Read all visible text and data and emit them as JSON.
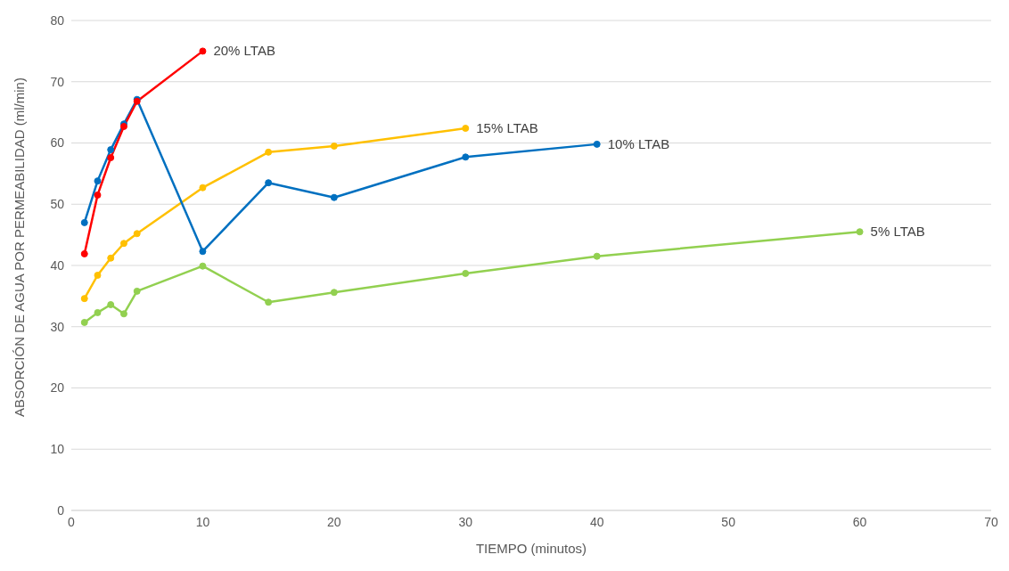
{
  "chart_data": {
    "type": "line",
    "xlabel": "TIEMPO (minutos)",
    "ylabel": "ABSORCIÓN DE AGUA POR PERMEABILIDAD (ml/min)",
    "xlim": [
      0,
      70
    ],
    "xticks": [
      0,
      10,
      20,
      30,
      40,
      50,
      60,
      70
    ],
    "ylim": [
      0,
      80
    ],
    "yticks": [
      0,
      10,
      20,
      30,
      40,
      50,
      60,
      70,
      80
    ],
    "grid": "y",
    "marker": "circle",
    "legend": false,
    "series": [
      {
        "name": "20% LTAB",
        "color": "#ff0000",
        "x": [
          1,
          2,
          3,
          4,
          5,
          10
        ],
        "values": [
          41.9,
          51.5,
          57.6,
          62.7,
          66.8,
          75
        ]
      },
      {
        "name": "10% LTAB",
        "color": "#0070c0",
        "x": [
          1,
          2,
          3,
          4,
          5,
          10,
          15,
          20,
          30,
          40
        ],
        "values": [
          47,
          53.8,
          58.9,
          63.1,
          67.1,
          42.3,
          53.5,
          51.1,
          57.7,
          59.8
        ]
      },
      {
        "name": "15% LTAB",
        "color": "#ffc000",
        "x": [
          1,
          2,
          3,
          4,
          5,
          10,
          15,
          20,
          30
        ],
        "values": [
          34.6,
          38.4,
          41.2,
          43.6,
          45.2,
          52.7,
          58.5,
          59.5,
          62.4
        ]
      },
      {
        "name": "5% LTAB",
        "color": "#92d050",
        "x": [
          1,
          2,
          3,
          4,
          5,
          10,
          15,
          20,
          30,
          40,
          60
        ],
        "values": [
          30.7,
          32.3,
          33.6,
          32.1,
          35.8,
          39.9,
          34.0,
          35.6,
          38.7,
          41.5,
          45.5
        ]
      }
    ]
  }
}
